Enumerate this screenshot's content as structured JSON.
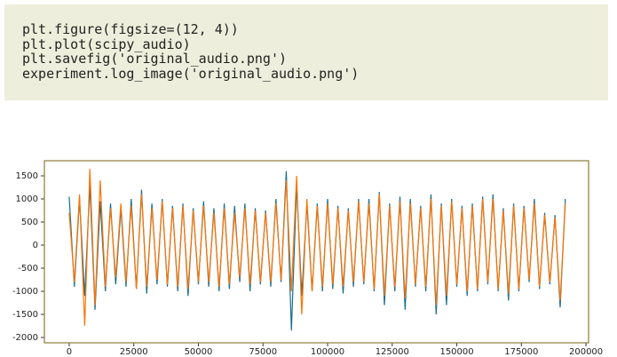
{
  "code": {
    "lines": [
      "plt.figure(figsize=(12, 4))",
      "plt.plot(scipy_audio)",
      "plt.savefig('original_audio.png')",
      "experiment.log_image('original_audio.png')"
    ]
  },
  "chart_data": {
    "type": "line",
    "x": [
      0,
      2000,
      4000,
      6000,
      8000,
      10000,
      12000,
      14000,
      16000,
      18000,
      20000,
      22000,
      24000,
      26000,
      28000,
      30000,
      32000,
      34000,
      36000,
      38000,
      40000,
      42000,
      44000,
      46000,
      48000,
      50000,
      52000,
      54000,
      56000,
      58000,
      60000,
      62000,
      64000,
      66000,
      68000,
      70000,
      72000,
      74000,
      76000,
      78000,
      80000,
      82000,
      84000,
      86000,
      88000,
      90000,
      92000,
      94000,
      96000,
      98000,
      100000,
      102000,
      104000,
      106000,
      108000,
      110000,
      112000,
      114000,
      116000,
      118000,
      120000,
      122000,
      124000,
      126000,
      128000,
      130000,
      132000,
      134000,
      136000,
      138000,
      140000,
      142000,
      144000,
      146000,
      148000,
      150000,
      152000,
      154000,
      156000,
      158000,
      160000,
      162000,
      164000,
      166000,
      168000,
      170000,
      172000,
      174000,
      176000,
      178000,
      180000,
      182000,
      184000,
      186000,
      188000,
      190000,
      192000
    ],
    "series": [
      {
        "color": "#1a6e8e",
        "values": [
          1050,
          -900,
          1000,
          -1100,
          1300,
          -1400,
          950,
          -1000,
          900,
          -850,
          800,
          -900,
          1000,
          -950,
          1200,
          -1050,
          900,
          -850,
          1000,
          -900,
          850,
          -1000,
          900,
          -1100,
          800,
          -850,
          950,
          -900,
          800,
          -1000,
          900,
          -950,
          850,
          -800,
          900,
          -1000,
          800,
          -850,
          750,
          -900,
          1000,
          -800,
          1600,
          -1850,
          1300,
          -1100,
          900,
          -1000,
          900,
          -1000,
          1000,
          -950,
          850,
          -1050,
          800,
          -900,
          1000,
          -850,
          1000,
          -1000,
          1150,
          -1300,
          900,
          -1000,
          1050,
          -1400,
          1000,
          -900,
          850,
          -1000,
          1100,
          -1500,
          900,
          -1300,
          1000,
          -900,
          850,
          -1100,
          900,
          -1000,
          1050,
          -850,
          1100,
          -1000,
          800,
          -1200,
          900,
          -1000,
          850,
          -800,
          1000,
          -950,
          700,
          -850,
          650,
          -1350,
          1000
        ]
      },
      {
        "color": "#ff7300",
        "values": [
          700,
          -800,
          1100,
          -1750,
          1650,
          -1300,
          1400,
          -900,
          800,
          -700,
          900,
          -800,
          850,
          -950,
          1100,
          -900,
          800,
          -750,
          950,
          -850,
          800,
          -900,
          850,
          -950,
          750,
          -800,
          850,
          -800,
          700,
          -900,
          800,
          -850,
          700,
          -700,
          800,
          -850,
          750,
          -800,
          700,
          -800,
          900,
          -750,
          1400,
          -1000,
          1500,
          -1500,
          1000,
          -1000,
          850,
          -900,
          900,
          -850,
          800,
          -900,
          750,
          -800,
          950,
          -800,
          900,
          -950,
          1100,
          -1100,
          850,
          -900,
          950,
          -1150,
          900,
          -850,
          800,
          -900,
          1000,
          -1300,
          850,
          -1100,
          950,
          -850,
          800,
          -1000,
          850,
          -950,
          1000,
          -800,
          1000,
          -950,
          750,
          -1050,
          850,
          -950,
          800,
          -750,
          900,
          -900,
          650,
          -800,
          600,
          -1200,
          900
        ]
      }
    ],
    "xlim": [
      -9600,
      201000
    ],
    "ylim": [
      -2115,
      1827
    ],
    "xticks": [
      0,
      25000,
      50000,
      75000,
      100000,
      125000,
      150000,
      175000,
      200000
    ],
    "yticks": [
      -2000,
      -1500,
      -1000,
      -500,
      0,
      500,
      1000,
      1500
    ]
  }
}
